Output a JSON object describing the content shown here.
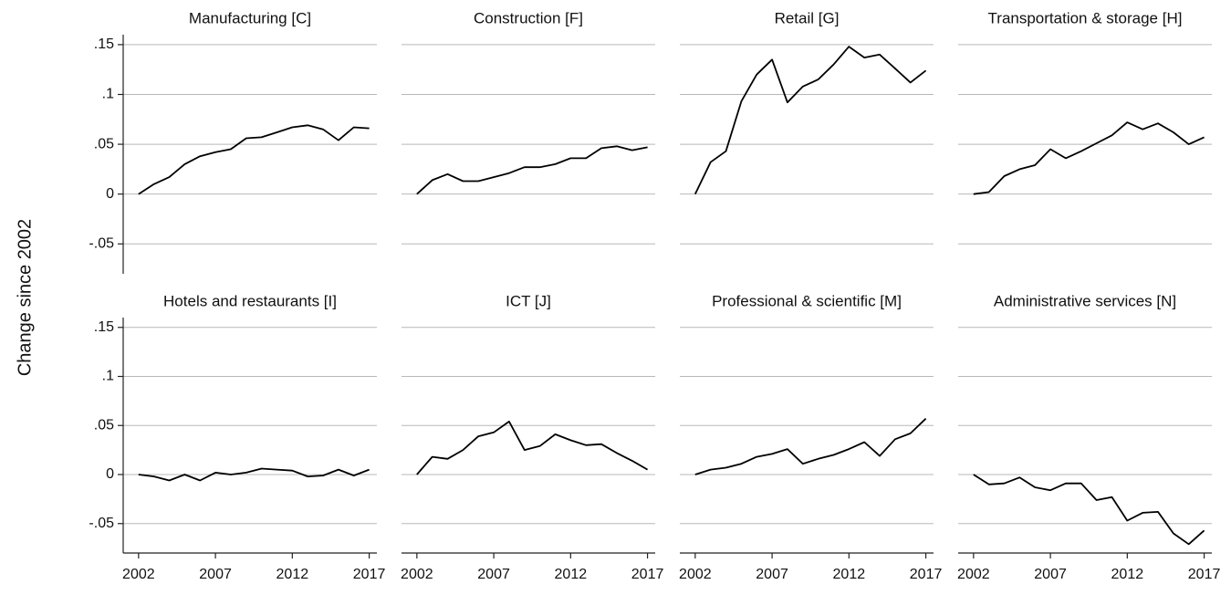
{
  "ylabel": "Change since 2002",
  "ylim": [
    -0.08,
    0.16
  ],
  "yticks": [
    {
      "value": -0.05,
      "label": "-.05"
    },
    0,
    {
      "value": 0.05,
      "label": ".05"
    },
    {
      "value": 0.1,
      "label": ".1"
    },
    {
      "value": 0.15,
      "label": ".15"
    }
  ],
  "xlim": [
    2001,
    2017.5
  ],
  "xticks": [
    2002,
    2007,
    2012,
    2017
  ],
  "chart_data": [
    {
      "type": "line",
      "title": "Manufacturing [C]",
      "color": "#000000",
      "x": [
        2002,
        2003,
        2004,
        2005,
        2006,
        2007,
        2008,
        2009,
        2010,
        2011,
        2012,
        2013,
        2014,
        2015,
        2016,
        2017
      ],
      "values": [
        0,
        0.01,
        0.017,
        0.03,
        0.038,
        0.042,
        0.045,
        0.056,
        0.057,
        0.062,
        0.067,
        0.069,
        0.065,
        0.054,
        0.067,
        0.066
      ]
    },
    {
      "type": "line",
      "title": "Construction [F]",
      "color": "#000000",
      "x": [
        2002,
        2003,
        2004,
        2005,
        2006,
        2007,
        2008,
        2009,
        2010,
        2011,
        2012,
        2013,
        2014,
        2015,
        2016,
        2017
      ],
      "values": [
        0,
        0.014,
        0.02,
        0.013,
        0.013,
        0.017,
        0.021,
        0.027,
        0.027,
        0.03,
        0.036,
        0.036,
        0.046,
        0.048,
        0.044,
        0.047
      ]
    },
    {
      "type": "line",
      "title": "Retail [G]",
      "color": "#000000",
      "x": [
        2002,
        2003,
        2004,
        2005,
        2006,
        2007,
        2008,
        2009,
        2010,
        2011,
        2012,
        2013,
        2014,
        2015,
        2016,
        2017
      ],
      "values": [
        0,
        0.032,
        0.043,
        0.093,
        0.12,
        0.135,
        0.092,
        0.108,
        0.115,
        0.13,
        0.148,
        0.137,
        0.14,
        0.126,
        0.112,
        0.124
      ]
    },
    {
      "type": "line",
      "title": "Transportation & storage [H]",
      "color": "#000000",
      "x": [
        2002,
        2003,
        2004,
        2005,
        2006,
        2007,
        2008,
        2009,
        2010,
        2011,
        2012,
        2013,
        2014,
        2015,
        2016,
        2017
      ],
      "values": [
        0,
        0.002,
        0.018,
        0.025,
        0.029,
        0.045,
        0.036,
        0.043,
        0.051,
        0.059,
        0.072,
        0.065,
        0.071,
        0.062,
        0.05,
        0.057
      ]
    },
    {
      "type": "line",
      "title": "Hotels and restaurants [I]",
      "color": "#000000",
      "x": [
        2002,
        2003,
        2004,
        2005,
        2006,
        2007,
        2008,
        2009,
        2010,
        2011,
        2012,
        2013,
        2014,
        2015,
        2016,
        2017
      ],
      "values": [
        0,
        -0.002,
        -0.006,
        0,
        -0.006,
        0.002,
        0,
        0.002,
        0.006,
        0.005,
        0.004,
        -0.002,
        -0.001,
        0.005,
        -0.001,
        0.005
      ]
    },
    {
      "type": "line",
      "title": "ICT [J]",
      "color": "#000000",
      "x": [
        2002,
        2003,
        2004,
        2005,
        2006,
        2007,
        2008,
        2009,
        2010,
        2011,
        2012,
        2013,
        2014,
        2015,
        2016,
        2017
      ],
      "values": [
        0,
        0.018,
        0.016,
        0.025,
        0.039,
        0.043,
        0.054,
        0.025,
        0.029,
        0.041,
        0.035,
        0.03,
        0.031,
        0.022,
        0.014,
        0.005
      ]
    },
    {
      "type": "line",
      "title": "Professional & scientific [M]",
      "color": "#000000",
      "x": [
        2002,
        2003,
        2004,
        2005,
        2006,
        2007,
        2008,
        2009,
        2010,
        2011,
        2012,
        2013,
        2014,
        2015,
        2016,
        2017
      ],
      "values": [
        0,
        0.005,
        0.007,
        0.011,
        0.018,
        0.021,
        0.026,
        0.011,
        0.016,
        0.02,
        0.026,
        0.033,
        0.019,
        0.036,
        0.042,
        0.057
      ]
    },
    {
      "type": "line",
      "title": "Administrative services [N]",
      "color": "#000000",
      "x": [
        2002,
        2003,
        2004,
        2005,
        2006,
        2007,
        2008,
        2009,
        2010,
        2011,
        2012,
        2013,
        2014,
        2015,
        2016,
        2017
      ],
      "values": [
        0,
        -0.01,
        -0.009,
        -0.003,
        -0.013,
        -0.016,
        -0.009,
        -0.009,
        -0.026,
        -0.023,
        -0.047,
        -0.039,
        -0.038,
        -0.06,
        -0.071,
        -0.057
      ]
    }
  ]
}
